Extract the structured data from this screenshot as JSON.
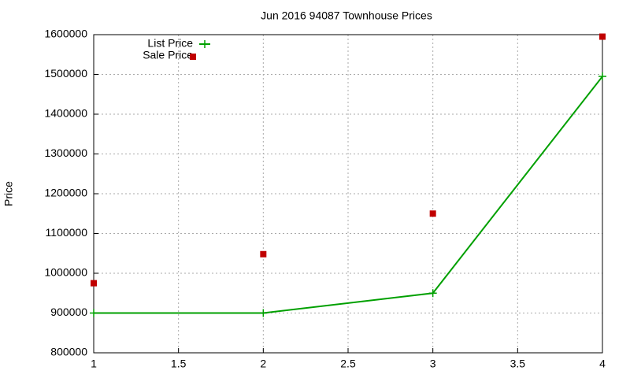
{
  "chart_data": {
    "type": "line",
    "title": "Jun 2016 94087 Townhouse Prices",
    "y_label": "Price",
    "x": [
      1,
      2,
      3,
      4
    ],
    "series": [
      {
        "name": "List Price",
        "color": "#00a000",
        "mode": "lines+points",
        "values": [
          900000,
          900000,
          950000,
          1495000
        ]
      },
      {
        "name": "Sale Price",
        "color": "#c00000",
        "mode": "points",
        "values": [
          975000,
          1048000,
          1150000,
          1595000
        ]
      }
    ],
    "xlim": [
      1,
      4
    ],
    "xticks": [
      1,
      1.5,
      2,
      2.5,
      3,
      3.5,
      4
    ],
    "ylim": [
      800000,
      1600000
    ],
    "yticks": [
      800000,
      900000,
      1000000,
      1100000,
      1200000,
      1300000,
      1400000,
      1500000,
      1600000
    ],
    "grid": true,
    "legend": "top-left"
  }
}
